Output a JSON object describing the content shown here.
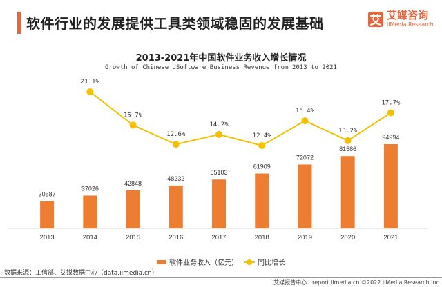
{
  "header": {
    "title": "软件行业的发展提供工具类领域稳固的发展基础",
    "logo_mark": "艾",
    "logo_cn": "艾媒咨询",
    "logo_en": "iiMedia Research"
  },
  "chart_data": {
    "type": "bar+line",
    "title": "2013-2021年中国软件业务收入增长情况",
    "subtitle": "Growth of Chinese dSoftware Business Revenue from 2013 to 2021",
    "categories": [
      "2013",
      "2014",
      "2015",
      "2016",
      "2017",
      "2018",
      "2019",
      "2020",
      "2021"
    ],
    "series": [
      {
        "name": "软件业务收入（亿元）",
        "type": "bar",
        "color": "#ed7d31",
        "values": [
          30587,
          37026,
          42848,
          48232,
          55103,
          61909,
          72072,
          81586,
          94994
        ],
        "labels": [
          "30587",
          "37026",
          "42848",
          "48232",
          "55103",
          "61909",
          "72072",
          "81586",
          "94994"
        ]
      },
      {
        "name": "同比增长",
        "type": "line",
        "color": "#f5c000",
        "values": [
          null,
          21.1,
          15.7,
          12.6,
          14.2,
          12.4,
          16.4,
          13.2,
          17.7
        ],
        "labels": [
          "",
          "21.1%",
          "15.7%",
          "12.6%",
          "14.2%",
          "12.4%",
          "16.4%",
          "13.2%",
          "17.7%"
        ]
      }
    ],
    "xlabel": "",
    "ylabel": "",
    "grid": false,
    "legend": "bottom-center"
  },
  "legend": {
    "bar_label": "软件业务收入（亿元）",
    "line_label": "同比增长"
  },
  "source": "数据来源：工信部、艾媒数据中心（data.iimedia.cn）",
  "footer": "艾媒报告中心：report.iimedia.cn  ©2022   iiMedia Research  Inc"
}
